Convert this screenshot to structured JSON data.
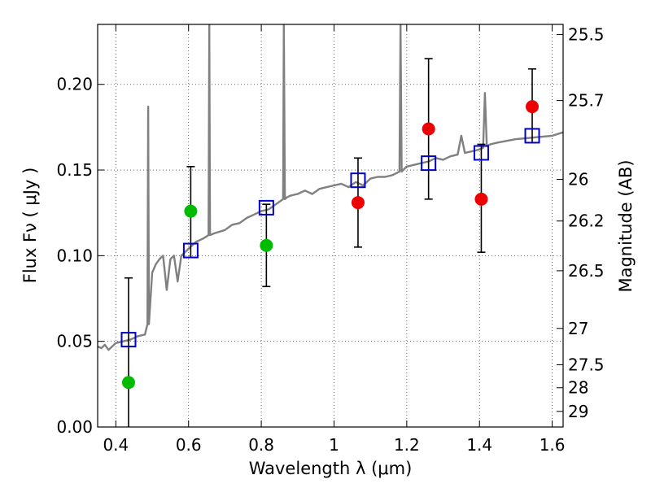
{
  "chart_data": {
    "type": "scatter",
    "xlabel": "Wavelength  λ (μm)",
    "ylabel": "Flux  Fν  ( μJy )",
    "y2label": "Magnitude (AB)",
    "xlim": [
      0.35,
      1.63
    ],
    "ylim": [
      0.0,
      0.235
    ],
    "xticks": [
      0.4,
      0.6,
      0.8,
      1.0,
      1.2,
      1.4,
      1.6
    ],
    "xtick_labels": [
      "0.4",
      "0.6",
      "0.8",
      "1",
      "1.2",
      "1.4",
      "1.6"
    ],
    "yticks": [
      0.0,
      0.05,
      0.1,
      0.15,
      0.2
    ],
    "ytick_labels": [
      "0.00",
      "0.05",
      "0.10",
      "0.15",
      "0.20"
    ],
    "y2ticks": [
      {
        "label": "25.5",
        "mag": 25.5
      },
      {
        "label": "25.7",
        "mag": 25.7
      },
      {
        "label": "26",
        "mag": 26.0
      },
      {
        "label": "26.2",
        "mag": 26.2
      },
      {
        "label": "26.5",
        "mag": 26.5
      },
      {
        "label": "27",
        "mag": 27.0
      },
      {
        "label": "27.5",
        "mag": 27.5
      },
      {
        "label": "28",
        "mag": 28.0
      },
      {
        "label": "29",
        "mag": 29.0
      }
    ],
    "grid": true,
    "colors": {
      "spectrum": "#808080",
      "green": "#00bb00",
      "red": "#ee0000",
      "model": "#0000cc",
      "errorbar": "#000000"
    },
    "spectrum": {
      "x": [
        0.35,
        0.36,
        0.37,
        0.38,
        0.4,
        0.42,
        0.44,
        0.46,
        0.48,
        0.487,
        0.489,
        0.491,
        0.5,
        0.51,
        0.52,
        0.53,
        0.54,
        0.55,
        0.56,
        0.57,
        0.58,
        0.6,
        0.62,
        0.64,
        0.655,
        0.657,
        0.659,
        0.67,
        0.7,
        0.72,
        0.74,
        0.76,
        0.78,
        0.8,
        0.82,
        0.84,
        0.86,
        0.862,
        0.865,
        0.87,
        0.88,
        0.9,
        0.92,
        0.94,
        0.96,
        0.98,
        1.0,
        1.02,
        1.04,
        1.06,
        1.08,
        1.1,
        1.12,
        1.14,
        1.16,
        1.18,
        1.183,
        1.186,
        1.19,
        1.2,
        1.22,
        1.24,
        1.26,
        1.28,
        1.3,
        1.32,
        1.34,
        1.35,
        1.36,
        1.38,
        1.4,
        1.41,
        1.415,
        1.42,
        1.43,
        1.45,
        1.5,
        1.55,
        1.6,
        1.63
      ],
      "y": [
        0.047,
        0.046,
        0.048,
        0.045,
        0.049,
        0.05,
        0.051,
        0.053,
        0.054,
        0.06,
        0.187,
        0.06,
        0.09,
        0.095,
        0.098,
        0.1,
        0.08,
        0.098,
        0.1,
        0.085,
        0.1,
        0.104,
        0.108,
        0.11,
        0.112,
        0.235,
        0.112,
        0.113,
        0.115,
        0.118,
        0.119,
        0.122,
        0.124,
        0.126,
        0.127,
        0.13,
        0.133,
        0.235,
        0.133,
        0.134,
        0.135,
        0.136,
        0.138,
        0.136,
        0.139,
        0.14,
        0.141,
        0.142,
        0.14,
        0.143,
        0.141,
        0.145,
        0.146,
        0.146,
        0.147,
        0.149,
        0.235,
        0.149,
        0.15,
        0.152,
        0.153,
        0.154,
        0.155,
        0.157,
        0.156,
        0.158,
        0.159,
        0.17,
        0.16,
        0.161,
        0.162,
        0.163,
        0.195,
        0.164,
        0.165,
        0.166,
        0.168,
        0.169,
        0.17,
        0.172
      ]
    },
    "green_points": [
      {
        "x": 0.435,
        "y": 0.026,
        "yerr_low": 0.0,
        "yerr_high": 0.087
      },
      {
        "x": 0.606,
        "y": 0.126,
        "yerr_low": 0.099,
        "yerr_high": 0.152
      },
      {
        "x": 0.814,
        "y": 0.106,
        "yerr_low": 0.082,
        "yerr_high": 0.13
      }
    ],
    "red_points": [
      {
        "x": 1.066,
        "y": 0.131,
        "yerr_low": 0.105,
        "yerr_high": 0.157
      },
      {
        "x": 1.26,
        "y": 0.174,
        "yerr_low": 0.133,
        "yerr_high": 0.215
      },
      {
        "x": 1.405,
        "y": 0.133,
        "yerr_low": 0.102,
        "yerr_high": 0.165
      },
      {
        "x": 1.545,
        "y": 0.187,
        "yerr_low": 0.166,
        "yerr_high": 0.209
      }
    ],
    "model_points": [
      {
        "x": 0.435,
        "y": 0.051
      },
      {
        "x": 0.606,
        "y": 0.103
      },
      {
        "x": 0.814,
        "y": 0.128
      },
      {
        "x": 1.066,
        "y": 0.144
      },
      {
        "x": 1.26,
        "y": 0.154
      },
      {
        "x": 1.405,
        "y": 0.16
      },
      {
        "x": 1.545,
        "y": 0.17
      }
    ]
  }
}
